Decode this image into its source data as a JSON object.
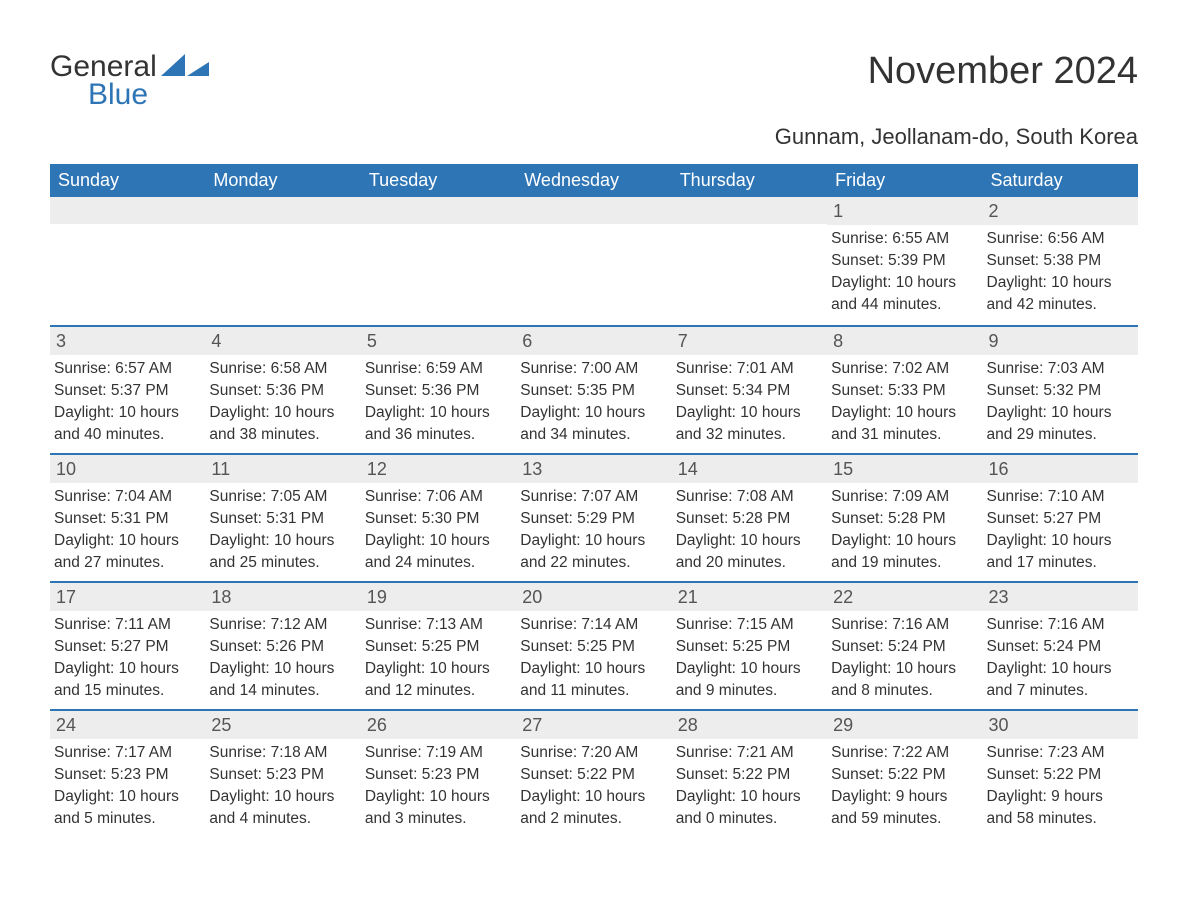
{
  "logo": {
    "text1": "General",
    "text2": "Blue",
    "icon_color": "#2e75b6"
  },
  "title": "November 2024",
  "location": "Gunnam, Jeollanam-do, South Korea",
  "colors": {
    "header_bg": "#2e75b6",
    "header_text": "#ffffff",
    "daynum_bg": "#ededed",
    "week_border": "#2e75b6",
    "text": "#333333",
    "background": "#ffffff"
  },
  "typography": {
    "title_fontsize": 38,
    "location_fontsize": 22,
    "header_fontsize": 18,
    "cell_fontsize": 15.5,
    "daynum_fontsize": 18
  },
  "day_names": [
    "Sunday",
    "Monday",
    "Tuesday",
    "Wednesday",
    "Thursday",
    "Friday",
    "Saturday"
  ],
  "weeks": [
    [
      {
        "empty": true
      },
      {
        "empty": true
      },
      {
        "empty": true
      },
      {
        "empty": true
      },
      {
        "empty": true
      },
      {
        "day": "1",
        "sunrise": "Sunrise: 6:55 AM",
        "sunset": "Sunset: 5:39 PM",
        "daylight1": "Daylight: 10 hours",
        "daylight2": "and 44 minutes."
      },
      {
        "day": "2",
        "sunrise": "Sunrise: 6:56 AM",
        "sunset": "Sunset: 5:38 PM",
        "daylight1": "Daylight: 10 hours",
        "daylight2": "and 42 minutes."
      }
    ],
    [
      {
        "day": "3",
        "sunrise": "Sunrise: 6:57 AM",
        "sunset": "Sunset: 5:37 PM",
        "daylight1": "Daylight: 10 hours",
        "daylight2": "and 40 minutes."
      },
      {
        "day": "4",
        "sunrise": "Sunrise: 6:58 AM",
        "sunset": "Sunset: 5:36 PM",
        "daylight1": "Daylight: 10 hours",
        "daylight2": "and 38 minutes."
      },
      {
        "day": "5",
        "sunrise": "Sunrise: 6:59 AM",
        "sunset": "Sunset: 5:36 PM",
        "daylight1": "Daylight: 10 hours",
        "daylight2": "and 36 minutes."
      },
      {
        "day": "6",
        "sunrise": "Sunrise: 7:00 AM",
        "sunset": "Sunset: 5:35 PM",
        "daylight1": "Daylight: 10 hours",
        "daylight2": "and 34 minutes."
      },
      {
        "day": "7",
        "sunrise": "Sunrise: 7:01 AM",
        "sunset": "Sunset: 5:34 PM",
        "daylight1": "Daylight: 10 hours",
        "daylight2": "and 32 minutes."
      },
      {
        "day": "8",
        "sunrise": "Sunrise: 7:02 AM",
        "sunset": "Sunset: 5:33 PM",
        "daylight1": "Daylight: 10 hours",
        "daylight2": "and 31 minutes."
      },
      {
        "day": "9",
        "sunrise": "Sunrise: 7:03 AM",
        "sunset": "Sunset: 5:32 PM",
        "daylight1": "Daylight: 10 hours",
        "daylight2": "and 29 minutes."
      }
    ],
    [
      {
        "day": "10",
        "sunrise": "Sunrise: 7:04 AM",
        "sunset": "Sunset: 5:31 PM",
        "daylight1": "Daylight: 10 hours",
        "daylight2": "and 27 minutes."
      },
      {
        "day": "11",
        "sunrise": "Sunrise: 7:05 AM",
        "sunset": "Sunset: 5:31 PM",
        "daylight1": "Daylight: 10 hours",
        "daylight2": "and 25 minutes."
      },
      {
        "day": "12",
        "sunrise": "Sunrise: 7:06 AM",
        "sunset": "Sunset: 5:30 PM",
        "daylight1": "Daylight: 10 hours",
        "daylight2": "and 24 minutes."
      },
      {
        "day": "13",
        "sunrise": "Sunrise: 7:07 AM",
        "sunset": "Sunset: 5:29 PM",
        "daylight1": "Daylight: 10 hours",
        "daylight2": "and 22 minutes."
      },
      {
        "day": "14",
        "sunrise": "Sunrise: 7:08 AM",
        "sunset": "Sunset: 5:28 PM",
        "daylight1": "Daylight: 10 hours",
        "daylight2": "and 20 minutes."
      },
      {
        "day": "15",
        "sunrise": "Sunrise: 7:09 AM",
        "sunset": "Sunset: 5:28 PM",
        "daylight1": "Daylight: 10 hours",
        "daylight2": "and 19 minutes."
      },
      {
        "day": "16",
        "sunrise": "Sunrise: 7:10 AM",
        "sunset": "Sunset: 5:27 PM",
        "daylight1": "Daylight: 10 hours",
        "daylight2": "and 17 minutes."
      }
    ],
    [
      {
        "day": "17",
        "sunrise": "Sunrise: 7:11 AM",
        "sunset": "Sunset: 5:27 PM",
        "daylight1": "Daylight: 10 hours",
        "daylight2": "and 15 minutes."
      },
      {
        "day": "18",
        "sunrise": "Sunrise: 7:12 AM",
        "sunset": "Sunset: 5:26 PM",
        "daylight1": "Daylight: 10 hours",
        "daylight2": "and 14 minutes."
      },
      {
        "day": "19",
        "sunrise": "Sunrise: 7:13 AM",
        "sunset": "Sunset: 5:25 PM",
        "daylight1": "Daylight: 10 hours",
        "daylight2": "and 12 minutes."
      },
      {
        "day": "20",
        "sunrise": "Sunrise: 7:14 AM",
        "sunset": "Sunset: 5:25 PM",
        "daylight1": "Daylight: 10 hours",
        "daylight2": "and 11 minutes."
      },
      {
        "day": "21",
        "sunrise": "Sunrise: 7:15 AM",
        "sunset": "Sunset: 5:25 PM",
        "daylight1": "Daylight: 10 hours",
        "daylight2": "and 9 minutes."
      },
      {
        "day": "22",
        "sunrise": "Sunrise: 7:16 AM",
        "sunset": "Sunset: 5:24 PM",
        "daylight1": "Daylight: 10 hours",
        "daylight2": "and 8 minutes."
      },
      {
        "day": "23",
        "sunrise": "Sunrise: 7:16 AM",
        "sunset": "Sunset: 5:24 PM",
        "daylight1": "Daylight: 10 hours",
        "daylight2": "and 7 minutes."
      }
    ],
    [
      {
        "day": "24",
        "sunrise": "Sunrise: 7:17 AM",
        "sunset": "Sunset: 5:23 PM",
        "daylight1": "Daylight: 10 hours",
        "daylight2": "and 5 minutes."
      },
      {
        "day": "25",
        "sunrise": "Sunrise: 7:18 AM",
        "sunset": "Sunset: 5:23 PM",
        "daylight1": "Daylight: 10 hours",
        "daylight2": "and 4 minutes."
      },
      {
        "day": "26",
        "sunrise": "Sunrise: 7:19 AM",
        "sunset": "Sunset: 5:23 PM",
        "daylight1": "Daylight: 10 hours",
        "daylight2": "and 3 minutes."
      },
      {
        "day": "27",
        "sunrise": "Sunrise: 7:20 AM",
        "sunset": "Sunset: 5:22 PM",
        "daylight1": "Daylight: 10 hours",
        "daylight2": "and 2 minutes."
      },
      {
        "day": "28",
        "sunrise": "Sunrise: 7:21 AM",
        "sunset": "Sunset: 5:22 PM",
        "daylight1": "Daylight: 10 hours",
        "daylight2": "and 0 minutes."
      },
      {
        "day": "29",
        "sunrise": "Sunrise: 7:22 AM",
        "sunset": "Sunset: 5:22 PM",
        "daylight1": "Daylight: 9 hours",
        "daylight2": "and 59 minutes."
      },
      {
        "day": "30",
        "sunrise": "Sunrise: 7:23 AM",
        "sunset": "Sunset: 5:22 PM",
        "daylight1": "Daylight: 9 hours",
        "daylight2": "and 58 minutes."
      }
    ]
  ]
}
